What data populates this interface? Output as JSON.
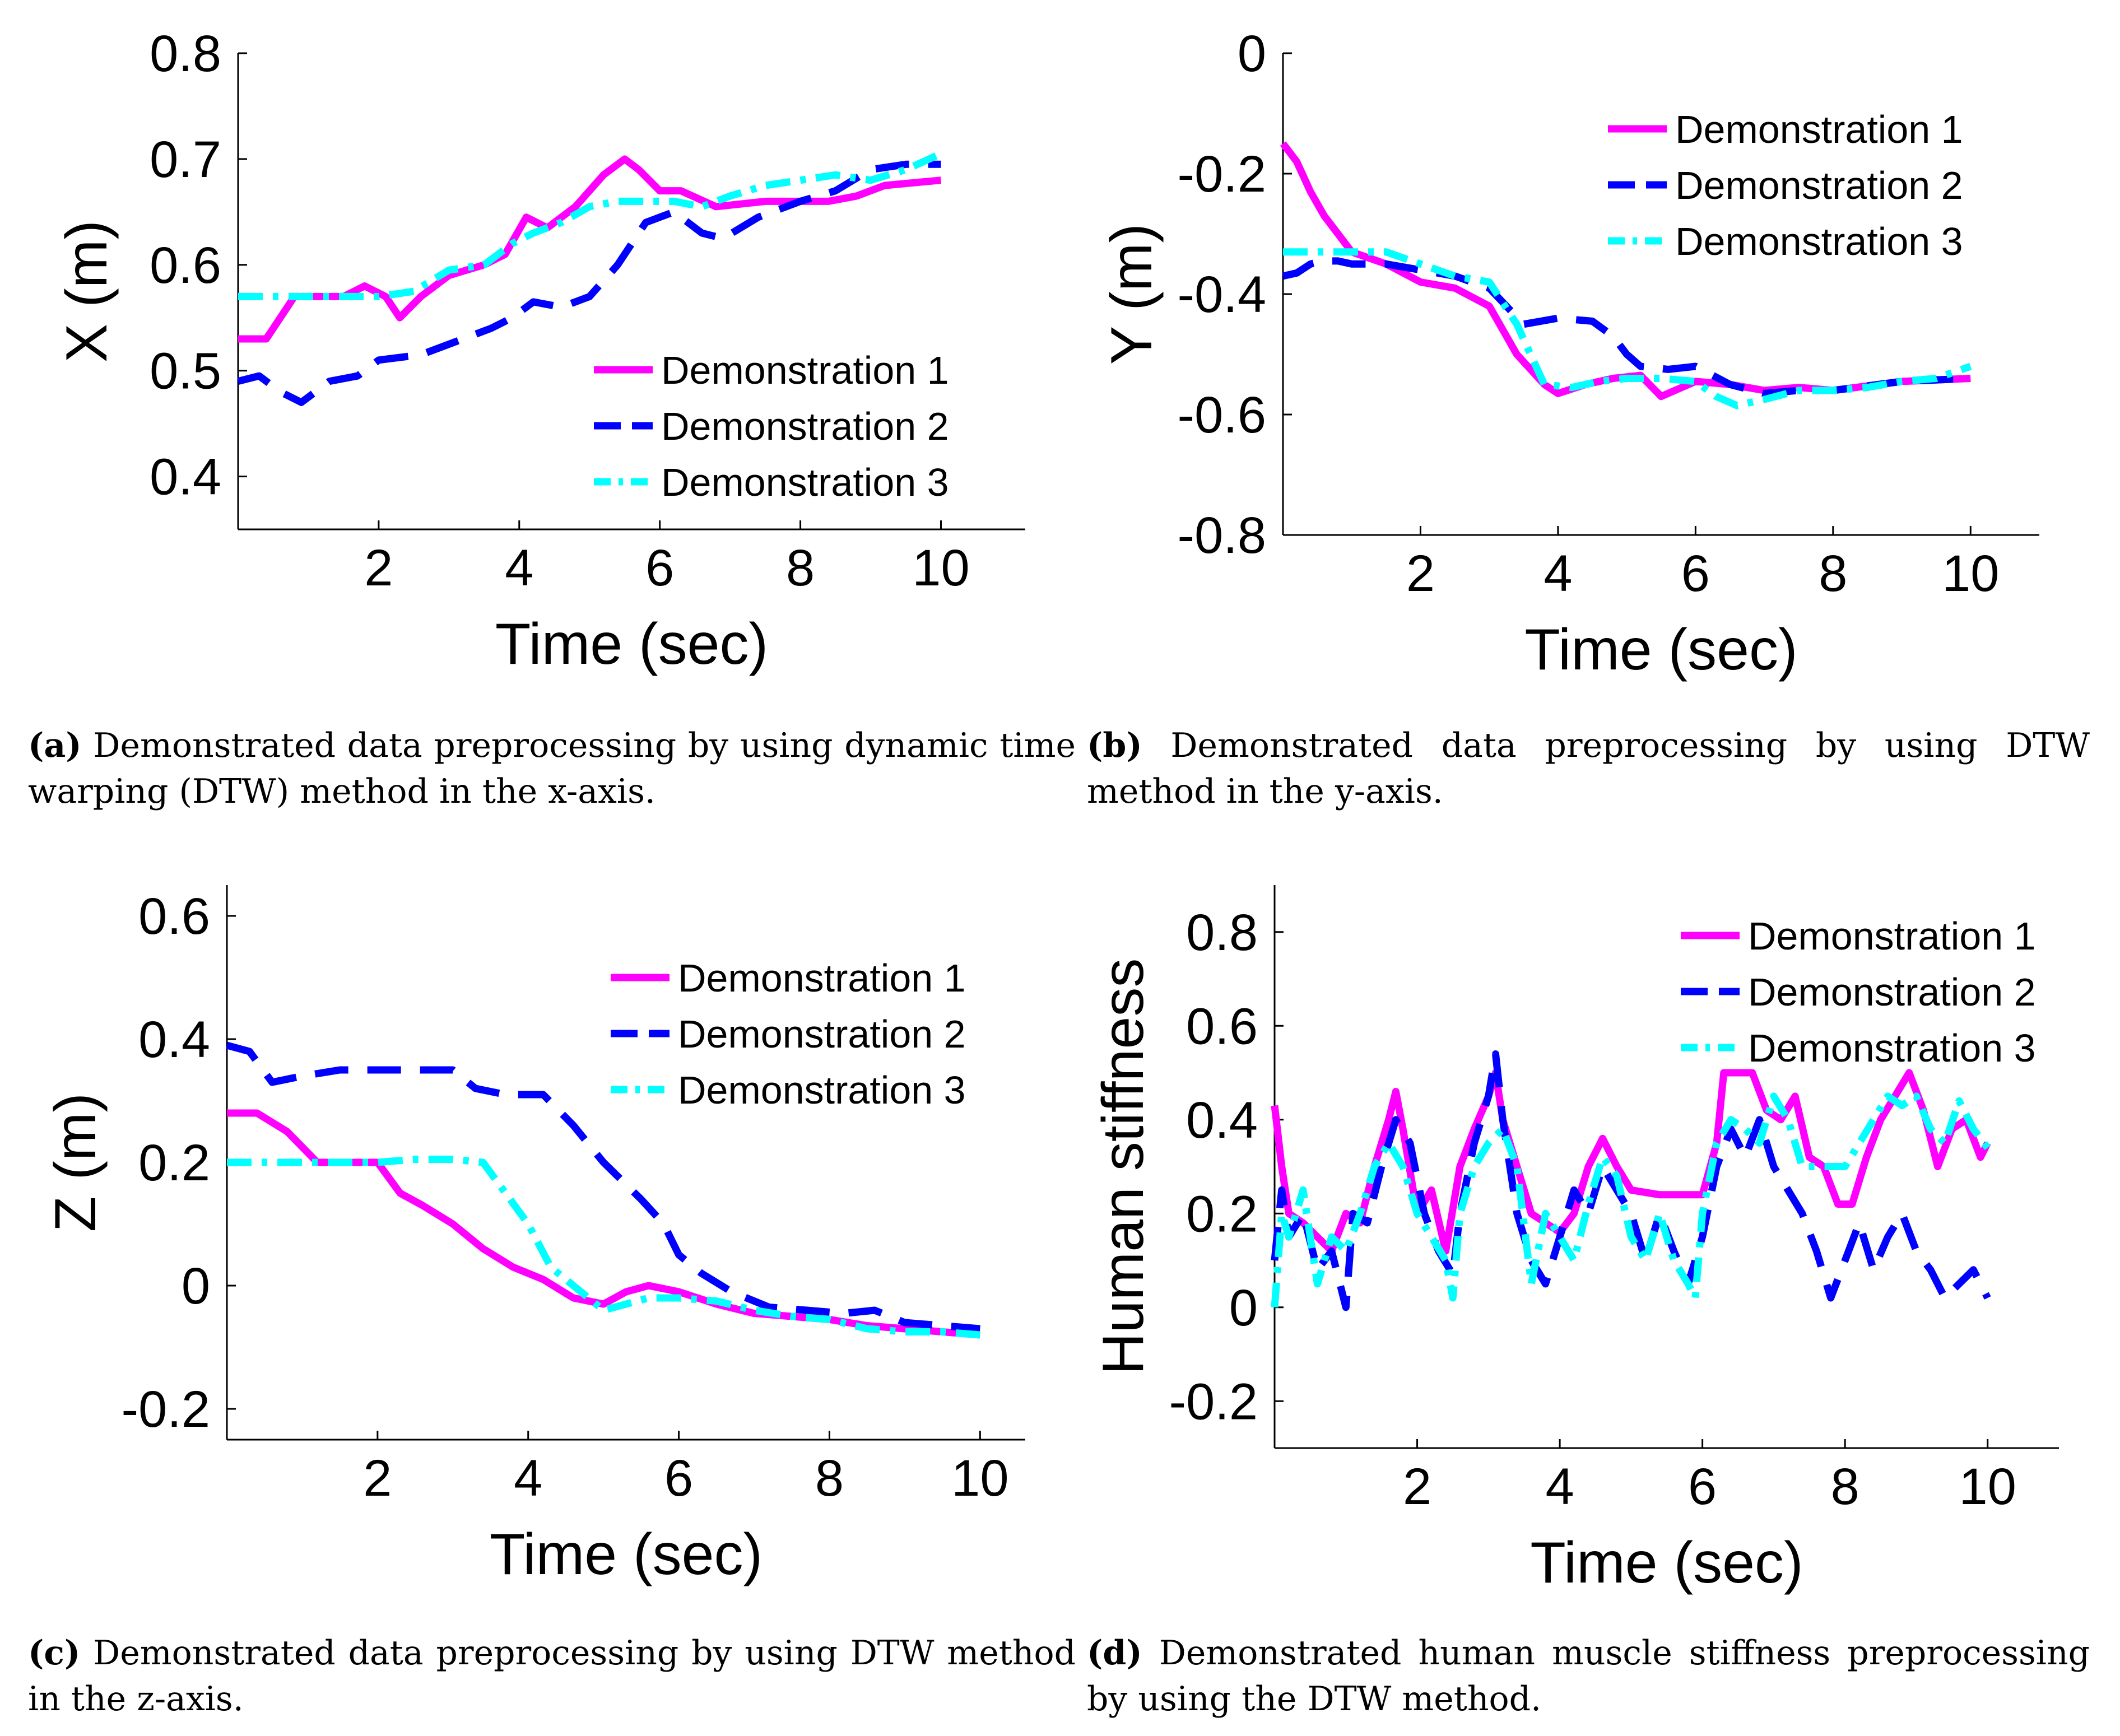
{
  "colors": {
    "series1": "#ff00ff",
    "series2": "#0000ff",
    "series3": "#00ffff",
    "axis": "#000000"
  },
  "chart_data": [
    {
      "id": "a",
      "type": "line",
      "xlabel": "Time (sec)",
      "ylabel": "X (m)",
      "xlim": [
        0,
        11.2
      ],
      "ylim": [
        0.35,
        0.8
      ],
      "xticks": [
        2,
        4,
        6,
        8,
        10
      ],
      "yticks": [
        0.4,
        0.5,
        0.6,
        0.7,
        0.8
      ],
      "xtick_labels": [
        "2",
        "4",
        "6",
        "8",
        "10"
      ],
      "ytick_labels": [
        "0.4",
        "0.5",
        "0.6",
        "0.7",
        "0.8"
      ],
      "legend": "bottom-right",
      "series": [
        {
          "name": "Demonstration 1",
          "style": "solid",
          "x": [
            0,
            0.4,
            0.8,
            1.5,
            1.8,
            2.1,
            2.3,
            2.6,
            3.0,
            3.5,
            3.8,
            4.1,
            4.4,
            4.8,
            5.2,
            5.5,
            5.7,
            6.0,
            6.3,
            6.8,
            7.5,
            8.0,
            8.4,
            8.8,
            9.2,
            10
          ],
          "y": [
            0.53,
            0.53,
            0.57,
            0.57,
            0.58,
            0.57,
            0.55,
            0.57,
            0.59,
            0.6,
            0.61,
            0.645,
            0.635,
            0.655,
            0.685,
            0.7,
            0.69,
            0.67,
            0.67,
            0.655,
            0.66,
            0.66,
            0.66,
            0.665,
            0.675,
            0.68
          ]
        },
        {
          "name": "Demonstration 2",
          "style": "dashed",
          "x": [
            0,
            0.3,
            0.6,
            0.9,
            1.3,
            1.7,
            2.0,
            2.6,
            3.2,
            3.6,
            3.9,
            4.2,
            4.6,
            5.0,
            5.4,
            5.8,
            6.2,
            6.6,
            6.9,
            7.4,
            8.0,
            8.5,
            9.0,
            9.5,
            10
          ],
          "y": [
            0.49,
            0.495,
            0.48,
            0.47,
            0.49,
            0.495,
            0.51,
            0.515,
            0.53,
            0.54,
            0.55,
            0.565,
            0.56,
            0.57,
            0.6,
            0.64,
            0.65,
            0.63,
            0.625,
            0.645,
            0.66,
            0.67,
            0.69,
            0.695,
            0.695
          ]
        },
        {
          "name": "Demonstration 3",
          "style": "dashdot",
          "x": [
            0,
            0.5,
            1.0,
            1.5,
            2.0,
            2.5,
            3.0,
            3.5,
            3.9,
            4.2,
            4.6,
            5.0,
            5.4,
            5.8,
            6.2,
            6.6,
            7.0,
            7.5,
            8.0,
            8.5,
            9.0,
            9.5,
            10
          ],
          "y": [
            0.57,
            0.57,
            0.57,
            0.57,
            0.57,
            0.575,
            0.595,
            0.6,
            0.62,
            0.63,
            0.64,
            0.655,
            0.66,
            0.66,
            0.66,
            0.655,
            0.665,
            0.675,
            0.68,
            0.685,
            0.68,
            0.69,
            0.705
          ]
        }
      ]
    },
    {
      "id": "b",
      "type": "line",
      "xlabel": "Time (sec)",
      "ylabel": "Y (m)",
      "xlim": [
        0,
        11
      ],
      "ylim": [
        -0.8,
        0
      ],
      "xticks": [
        2,
        4,
        6,
        8,
        10
      ],
      "yticks": [
        -0.8,
        -0.6,
        -0.4,
        -0.2,
        0
      ],
      "xtick_labels": [
        "2",
        "4",
        "6",
        "8",
        "10"
      ],
      "ytick_labels": [
        "-0.8",
        "-0.6",
        "-0.4",
        "-0.2",
        "0"
      ],
      "legend": "top-right",
      "series": [
        {
          "name": "Demonstration 1",
          "style": "solid",
          "x": [
            0,
            0.2,
            0.4,
            0.6,
            0.8,
            1.0,
            1.5,
            2.0,
            2.5,
            3.0,
            3.4,
            3.8,
            4.0,
            4.4,
            4.8,
            5.2,
            5.5,
            6.0,
            6.5,
            7.0,
            7.5,
            8.0,
            9.0,
            10
          ],
          "y": [
            -0.15,
            -0.18,
            -0.23,
            -0.27,
            -0.3,
            -0.33,
            -0.35,
            -0.38,
            -0.39,
            -0.42,
            -0.5,
            -0.55,
            -0.565,
            -0.55,
            -0.54,
            -0.535,
            -0.57,
            -0.545,
            -0.55,
            -0.56,
            -0.555,
            -0.56,
            -0.545,
            -0.54
          ]
        },
        {
          "name": "Demonstration 2",
          "style": "dashed",
          "x": [
            0,
            0.2,
            0.4,
            0.6,
            0.8,
            1.0,
            1.5,
            2.0,
            2.5,
            3.0,
            3.5,
            4.0,
            4.5,
            4.8,
            5.0,
            5.2,
            5.6,
            6.0,
            6.5,
            7.0,
            7.5,
            8.0,
            9.0,
            10
          ],
          "y": [
            -0.37,
            -0.365,
            -0.35,
            -0.345,
            -0.345,
            -0.35,
            -0.35,
            -0.36,
            -0.37,
            -0.39,
            -0.45,
            -0.44,
            -0.445,
            -0.47,
            -0.5,
            -0.52,
            -0.525,
            -0.52,
            -0.55,
            -0.565,
            -0.56,
            -0.56,
            -0.545,
            -0.54
          ]
        },
        {
          "name": "Demonstration 3",
          "style": "dashdot",
          "x": [
            0,
            0.5,
            1.0,
            1.5,
            2.0,
            2.5,
            3.0,
            3.4,
            3.8,
            4.2,
            4.6,
            5.0,
            5.5,
            6.0,
            6.3,
            6.6,
            7.0,
            7.5,
            8.0,
            8.5,
            9.0,
            9.5,
            10
          ],
          "y": [
            -0.33,
            -0.33,
            -0.33,
            -0.33,
            -0.35,
            -0.37,
            -0.38,
            -0.45,
            -0.55,
            -0.555,
            -0.545,
            -0.54,
            -0.54,
            -0.545,
            -0.57,
            -0.585,
            -0.575,
            -0.56,
            -0.56,
            -0.555,
            -0.545,
            -0.54,
            -0.52
          ]
        }
      ]
    },
    {
      "id": "c",
      "type": "line",
      "xlabel": "Time (sec)",
      "ylabel": "Z (m)",
      "xlim": [
        0,
        10.6
      ],
      "ylim": [
        -0.25,
        0.65
      ],
      "xticks": [
        2,
        4,
        6,
        8,
        10
      ],
      "yticks": [
        -0.2,
        0,
        0.2,
        0.4,
        0.6
      ],
      "xtick_labels": [
        "2",
        "4",
        "6",
        "8",
        "10"
      ],
      "ytick_labels": [
        "-0.2",
        "0",
        "0.2",
        "0.4",
        "0.6"
      ],
      "legend": "top-right",
      "series": [
        {
          "name": "Demonstration 1",
          "style": "solid",
          "x": [
            0,
            0.4,
            0.8,
            1.2,
            1.6,
            2.0,
            2.3,
            2.6,
            3.0,
            3.4,
            3.8,
            4.2,
            4.6,
            5.0,
            5.3,
            5.6,
            6.0,
            6.5,
            7.0,
            7.5,
            8.0,
            8.5,
            9.0,
            9.5,
            10
          ],
          "y": [
            0.28,
            0.28,
            0.25,
            0.2,
            0.2,
            0.2,
            0.15,
            0.13,
            0.1,
            0.06,
            0.03,
            0.01,
            -0.02,
            -0.03,
            -0.01,
            0,
            -0.01,
            -0.03,
            -0.045,
            -0.05,
            -0.055,
            -0.065,
            -0.07,
            -0.075,
            -0.08
          ]
        },
        {
          "name": "Demonstration 2",
          "style": "dashed",
          "x": [
            0,
            0.3,
            0.6,
            1.0,
            1.5,
            2.0,
            2.5,
            3.0,
            3.3,
            3.7,
            4.2,
            4.6,
            5.0,
            5.5,
            5.8,
            6.0,
            6.3,
            6.7,
            7.2,
            7.7,
            8.2,
            8.6,
            9.0,
            9.5,
            10
          ],
          "y": [
            0.39,
            0.38,
            0.33,
            0.34,
            0.35,
            0.35,
            0.35,
            0.35,
            0.32,
            0.31,
            0.31,
            0.26,
            0.2,
            0.14,
            0.1,
            0.05,
            0.02,
            -0.01,
            -0.035,
            -0.04,
            -0.045,
            -0.04,
            -0.06,
            -0.065,
            -0.07
          ]
        },
        {
          "name": "Demonstration 3",
          "style": "dashdot",
          "x": [
            0,
            0.5,
            1.0,
            1.5,
            2.0,
            2.5,
            3.0,
            3.4,
            3.7,
            4.0,
            4.3,
            4.6,
            5.0,
            5.3,
            5.6,
            6.0,
            6.5,
            7.0,
            7.5,
            8.0,
            8.5,
            9.0,
            9.5,
            10
          ],
          "y": [
            0.2,
            0.2,
            0.2,
            0.2,
            0.2,
            0.205,
            0.205,
            0.2,
            0.15,
            0.1,
            0.03,
            0.0,
            -0.04,
            -0.03,
            -0.02,
            -0.02,
            -0.025,
            -0.04,
            -0.05,
            -0.055,
            -0.07,
            -0.075,
            -0.075,
            -0.08
          ]
        }
      ]
    },
    {
      "id": "d",
      "type": "line",
      "xlabel": "Time (sec)",
      "ylabel": "Human stiffness",
      "xlim": [
        0,
        11
      ],
      "ylim": [
        -0.3,
        0.9
      ],
      "xticks": [
        2,
        4,
        6,
        8,
        10
      ],
      "yticks": [
        -0.2,
        0,
        0.2,
        0.4,
        0.6,
        0.8
      ],
      "xtick_labels": [
        "2",
        "4",
        "6",
        "8",
        "10"
      ],
      "ytick_labels": [
        "-0.2",
        "0",
        "0.2",
        "0.4",
        "0.6",
        "0.8"
      ],
      "legend": "top-right",
      "series": [
        {
          "name": "Demonstration 1",
          "style": "solid",
          "x": [
            0,
            0.1,
            0.2,
            0.4,
            0.6,
            0.8,
            1.0,
            1.2,
            1.4,
            1.6,
            1.7,
            1.8,
            2.0,
            2.2,
            2.4,
            2.6,
            2.8,
            3.0,
            3.1,
            3.2,
            3.4,
            3.6,
            3.8,
            4.0,
            4.2,
            4.4,
            4.6,
            4.8,
            5.0,
            5.4,
            5.8,
            6.0,
            6.2,
            6.3,
            6.5,
            6.7,
            6.9,
            7.1,
            7.3,
            7.5,
            7.7,
            7.9,
            8.1,
            8.3,
            8.5,
            8.7,
            8.9,
            9.1,
            9.3,
            9.5,
            9.7,
            9.9,
            10
          ],
          "y": [
            0.43,
            0.3,
            0.2,
            0.18,
            0.15,
            0.12,
            0.2,
            0.18,
            0.3,
            0.4,
            0.46,
            0.38,
            0.2,
            0.25,
            0.12,
            0.3,
            0.38,
            0.45,
            0.5,
            0.4,
            0.3,
            0.2,
            0.18,
            0.16,
            0.2,
            0.3,
            0.36,
            0.3,
            0.25,
            0.24,
            0.24,
            0.24,
            0.35,
            0.5,
            0.5,
            0.5,
            0.42,
            0.4,
            0.45,
            0.32,
            0.3,
            0.22,
            0.22,
            0.32,
            0.4,
            0.45,
            0.5,
            0.42,
            0.3,
            0.38,
            0.4,
            0.32,
            0.35
          ]
        },
        {
          "name": "Demonstration 2",
          "style": "dashed",
          "x": [
            0,
            0.1,
            0.2,
            0.4,
            0.6,
            0.8,
            1.0,
            1.1,
            1.3,
            1.5,
            1.7,
            1.9,
            2.1,
            2.3,
            2.5,
            2.6,
            2.8,
            3.0,
            3.1,
            3.2,
            3.4,
            3.6,
            3.8,
            4.0,
            4.2,
            4.4,
            4.6,
            4.8,
            5.0,
            5.2,
            5.4,
            5.6,
            5.8,
            6.0,
            6.2,
            6.4,
            6.6,
            6.8,
            7.0,
            7.2,
            7.4,
            7.6,
            7.8,
            8.0,
            8.2,
            8.4,
            8.6,
            8.8,
            9.0,
            9.2,
            9.4,
            9.6,
            9.8,
            10
          ],
          "y": [
            0.1,
            0.25,
            0.15,
            0.2,
            0.08,
            0.12,
            0.0,
            0.2,
            0.18,
            0.3,
            0.4,
            0.35,
            0.2,
            0.12,
            0.07,
            0.2,
            0.35,
            0.45,
            0.54,
            0.4,
            0.2,
            0.1,
            0.05,
            0.15,
            0.25,
            0.2,
            0.3,
            0.25,
            0.2,
            0.1,
            0.2,
            0.12,
            0.05,
            0.15,
            0.3,
            0.38,
            0.32,
            0.4,
            0.3,
            0.25,
            0.2,
            0.12,
            0.02,
            0.1,
            0.18,
            0.08,
            0.15,
            0.2,
            0.12,
            0.08,
            0.02,
            0.05,
            0.08,
            0.02
          ]
        },
        {
          "name": "Demonstration 3",
          "style": "dashdot",
          "x": [
            0,
            0.1,
            0.2,
            0.4,
            0.6,
            0.8,
            1.0,
            1.2,
            1.4,
            1.6,
            1.8,
            2.0,
            2.2,
            2.4,
            2.5,
            2.6,
            2.8,
            3.0,
            3.2,
            3.4,
            3.6,
            3.8,
            4.0,
            4.2,
            4.4,
            4.6,
            4.8,
            5.0,
            5.2,
            5.4,
            5.6,
            5.8,
            5.9,
            6.0,
            6.2,
            6.4,
            6.6,
            6.8,
            7.0,
            7.2,
            7.4,
            7.6,
            7.8,
            8.0,
            8.2,
            8.4,
            8.6,
            8.8,
            9.0,
            9.2,
            9.4,
            9.6,
            9.8,
            10
          ],
          "y": [
            0.0,
            0.2,
            0.15,
            0.25,
            0.05,
            0.15,
            0.12,
            0.2,
            0.3,
            0.35,
            0.3,
            0.2,
            0.15,
            0.1,
            0.02,
            0.2,
            0.3,
            0.35,
            0.38,
            0.3,
            0.05,
            0.2,
            0.15,
            0.1,
            0.22,
            0.32,
            0.28,
            0.15,
            0.1,
            0.2,
            0.1,
            0.05,
            0.02,
            0.2,
            0.35,
            0.4,
            0.38,
            0.35,
            0.45,
            0.4,
            0.3,
            0.3,
            0.3,
            0.3,
            0.35,
            0.4,
            0.45,
            0.43,
            0.45,
            0.38,
            0.35,
            0.44,
            0.38,
            0.34
          ]
        }
      ]
    }
  ],
  "captions": [
    {
      "label": "(a)",
      "text": " Demonstrated data preprocessing by using dynamic time warping (DTW) method in the x-axis."
    },
    {
      "label": "(b)",
      "text": " Demonstrated data preprocessing by using DTW method in the y-axis."
    },
    {
      "label": "(c)",
      "text": " Demonstrated data preprocessing by using DTW method in the z-axis."
    },
    {
      "label": "(d)",
      "text": " Demonstrated human muscle stiffness preprocessing by using the DTW method."
    }
  ]
}
